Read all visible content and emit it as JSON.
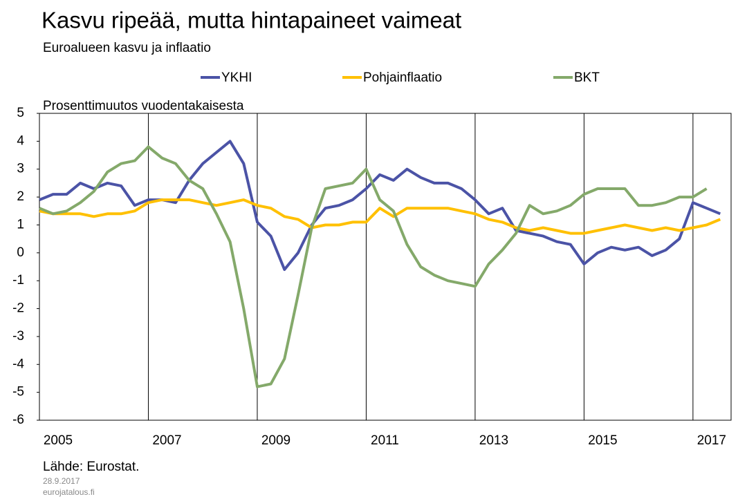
{
  "chart_data": {
    "type": "line",
    "title": "Kasvu ripeää, mutta hintapaineet vaimeat",
    "subtitle": "Euroalueen kasvu ja inflaatio",
    "y_axis_label": "Prosenttimuutos vuodentakaisesta",
    "source": "Lähde: Eurostat.",
    "date": "28.9.2017",
    "website": "eurojatalous.fi",
    "x": [
      2005,
      2005.25,
      2005.5,
      2005.75,
      2006,
      2006.25,
      2006.5,
      2006.75,
      2007,
      2007.25,
      2007.5,
      2007.75,
      2008,
      2008.25,
      2008.5,
      2008.75,
      2009,
      2009.25,
      2009.5,
      2009.75,
      2010,
      2010.25,
      2010.5,
      2010.75,
      2011,
      2011.25,
      2011.5,
      2011.75,
      2012,
      2012.25,
      2012.5,
      2012.75,
      2013,
      2013.25,
      2013.5,
      2013.75,
      2014,
      2014.25,
      2014.5,
      2014.75,
      2015,
      2015.25,
      2015.5,
      2015.75,
      2016,
      2016.25,
      2016.5,
      2016.75,
      2017,
      2017.25,
      2017.5
    ],
    "series": [
      {
        "name": "YKHI",
        "color": "#4b53a6",
        "values": [
          1.9,
          2.1,
          2.1,
          2.5,
          2.3,
          2.5,
          2.4,
          1.7,
          1.9,
          1.9,
          1.8,
          2.6,
          3.2,
          3.6,
          4.0,
          3.2,
          1.1,
          0.6,
          -0.6,
          0.0,
          1.0,
          1.6,
          1.7,
          1.9,
          2.3,
          2.8,
          2.6,
          3.0,
          2.7,
          2.5,
          2.5,
          2.3,
          1.9,
          1.4,
          1.6,
          0.8,
          0.7,
          0.6,
          0.4,
          0.3,
          -0.4,
          0.0,
          0.2,
          0.1,
          0.2,
          -0.1,
          0.1,
          0.5,
          1.8,
          1.6,
          1.4
        ]
      },
      {
        "name": "Pohjainflaatio",
        "color": "#ffc000",
        "values": [
          1.5,
          1.4,
          1.4,
          1.4,
          1.3,
          1.4,
          1.4,
          1.5,
          1.8,
          1.9,
          1.9,
          1.9,
          1.8,
          1.7,
          1.8,
          1.9,
          1.7,
          1.6,
          1.3,
          1.2,
          0.9,
          1.0,
          1.0,
          1.1,
          1.1,
          1.6,
          1.3,
          1.6,
          1.6,
          1.6,
          1.6,
          1.5,
          1.4,
          1.2,
          1.1,
          0.9,
          0.8,
          0.9,
          0.8,
          0.7,
          0.7,
          0.8,
          0.9,
          1.0,
          0.9,
          0.8,
          0.9,
          0.8,
          0.9,
          1.0,
          1.2
        ]
      },
      {
        "name": "BKT",
        "color": "#84a96a",
        "values": [
          1.6,
          1.4,
          1.5,
          1.8,
          2.2,
          2.9,
          3.2,
          3.3,
          3.8,
          3.4,
          3.2,
          2.6,
          2.3,
          1.4,
          0.4,
          -2.0,
          -4.8,
          -4.7,
          -3.8,
          -1.5,
          0.9,
          2.3,
          2.4,
          2.5,
          3.0,
          1.9,
          1.5,
          0.3,
          -0.5,
          -0.8,
          -1.0,
          -1.1,
          -1.2,
          -0.4,
          0.1,
          0.7,
          1.7,
          1.4,
          1.5,
          1.7,
          2.1,
          2.3,
          2.3,
          2.3,
          1.7,
          1.7,
          1.8,
          2.0,
          2.0,
          2.3,
          null
        ]
      }
    ],
    "xlim": [
      2005,
      2017.7
    ],
    "xticks": [
      2005,
      2007,
      2009,
      2011,
      2013,
      2015,
      2017
    ],
    "ylim": [
      -6,
      5
    ],
    "yticks": [
      5,
      4,
      3,
      2,
      1,
      0,
      -1,
      -2,
      -3,
      -4,
      -5,
      -6
    ],
    "grid": "x",
    "legend": "top"
  }
}
